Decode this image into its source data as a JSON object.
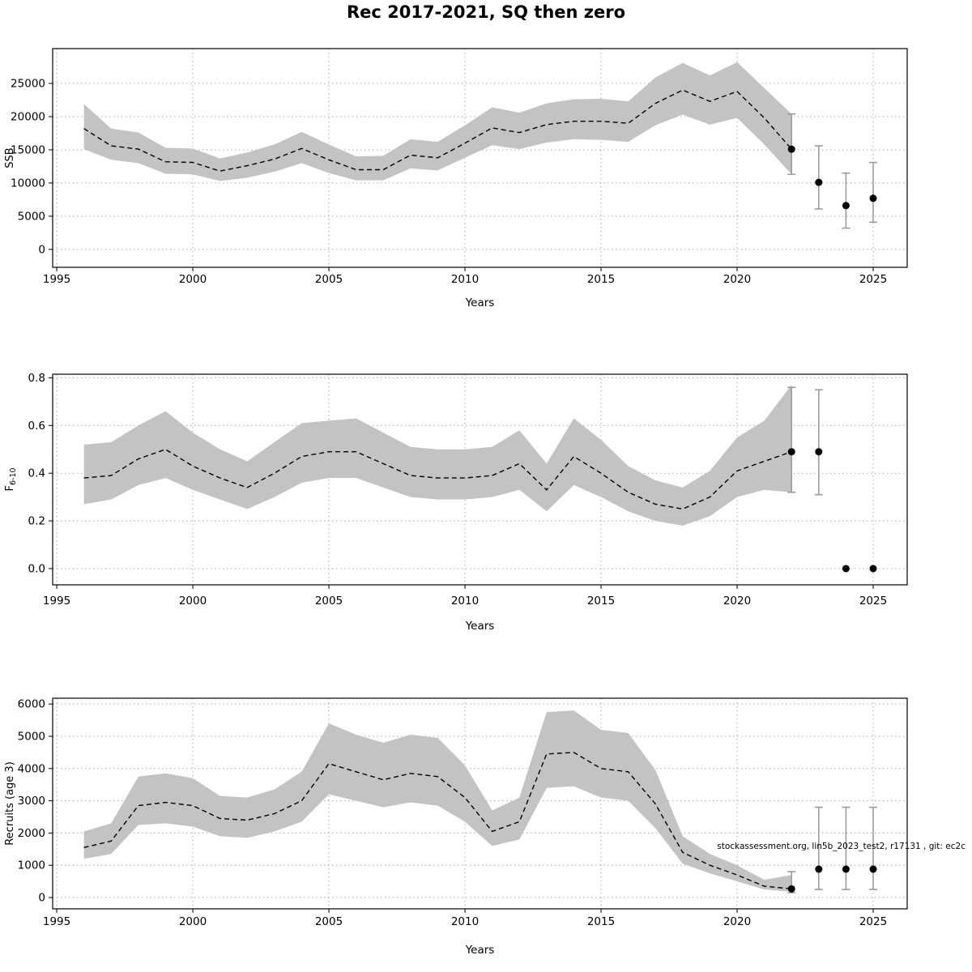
{
  "title": "Rec 2017-2021, SQ then zero",
  "colors": {
    "band": "#c3c3c3",
    "line": "#000000",
    "point": "#000000",
    "errorbar": "#9c9c9c",
    "grid": "#a9a9a9",
    "box": "#000000"
  },
  "chart_data": [
    {
      "type": "line",
      "title": "",
      "xlabel": "Years",
      "ylabel": "SSB",
      "ylabel_sub": "",
      "xlim": [
        1995,
        2026
      ],
      "ylim": [
        0,
        28500
      ],
      "grid": "dotted",
      "xticks": [
        1995,
        2000,
        2005,
        2010,
        2015,
        2020,
        2025
      ],
      "xtick_labels": [
        "1995",
        "2000",
        "2005",
        "2010",
        "2015",
        "2020",
        "2025"
      ],
      "yticks": [
        0,
        5000,
        10000,
        15000,
        20000,
        25000
      ],
      "ytick_labels": [
        "0",
        "5000",
        "10000",
        "15000",
        "20000",
        "25000"
      ],
      "x": [
        1996,
        1997,
        1998,
        1999,
        2000,
        2001,
        2002,
        2003,
        2004,
        2005,
        2006,
        2007,
        2008,
        2009,
        2010,
        2011,
        2012,
        2013,
        2014,
        2015,
        2016,
        2017,
        2018,
        2019,
        2020,
        2021,
        2022
      ],
      "estimate": [
        18200,
        15600,
        15100,
        13200,
        13100,
        11800,
        12600,
        13600,
        15200,
        13500,
        12000,
        12000,
        14200,
        13800,
        16000,
        18300,
        17600,
        18800,
        19300,
        19300,
        19000,
        22000,
        24000,
        22300,
        23800,
        19800,
        15100
      ],
      "lower": [
        15100,
        13500,
        13000,
        11400,
        11300,
        10300,
        10800,
        11700,
        13000,
        11500,
        10400,
        10400,
        12200,
        11900,
        13800,
        15700,
        15100,
        16100,
        16600,
        16500,
        16200,
        18700,
        20300,
        18800,
        19800,
        15800,
        11300
      ],
      "upper": [
        21900,
        18200,
        17600,
        15300,
        15200,
        13700,
        14600,
        15800,
        17700,
        15800,
        14000,
        14100,
        16600,
        16200,
        18700,
        21400,
        20600,
        22000,
        22600,
        22700,
        22300,
        25900,
        28100,
        26200,
        28200,
        24300,
        20400
      ],
      "forecast": {
        "x": [
          2022,
          2023,
          2024,
          2025
        ],
        "values": [
          15100,
          10100,
          6600,
          7700
        ],
        "lower": [
          11300,
          6100,
          3200,
          4100
        ],
        "upper": [
          20400,
          15600,
          11500,
          13100
        ]
      },
      "annotation": ""
    },
    {
      "type": "line",
      "title": "",
      "xlabel": "Years",
      "ylabel": "F",
      "ylabel_sub": "6-10",
      "xlim": [
        1995,
        2026
      ],
      "ylim": [
        0,
        0.8
      ],
      "grid": "dotted",
      "xticks": [
        1995,
        2000,
        2005,
        2010,
        2015,
        2020,
        2025
      ],
      "xtick_labels": [
        "1995",
        "2000",
        "2005",
        "2010",
        "2015",
        "2020",
        "2025"
      ],
      "yticks": [
        0,
        0.2,
        0.4,
        0.6,
        0.8
      ],
      "ytick_labels": [
        "0.0",
        "0.2",
        "0.4",
        "0.6",
        "0.8"
      ],
      "x": [
        1996,
        1997,
        1998,
        1999,
        2000,
        2001,
        2002,
        2003,
        2004,
        2005,
        2006,
        2007,
        2008,
        2009,
        2010,
        2011,
        2012,
        2013,
        2014,
        2015,
        2016,
        2017,
        2018,
        2019,
        2020,
        2021,
        2022
      ],
      "estimate": [
        0.38,
        0.39,
        0.46,
        0.5,
        0.43,
        0.38,
        0.34,
        0.4,
        0.47,
        0.49,
        0.49,
        0.44,
        0.39,
        0.38,
        0.38,
        0.39,
        0.44,
        0.33,
        0.47,
        0.4,
        0.32,
        0.27,
        0.25,
        0.3,
        0.41,
        0.45,
        0.49
      ],
      "lower": [
        0.27,
        0.29,
        0.35,
        0.38,
        0.33,
        0.29,
        0.25,
        0.3,
        0.36,
        0.38,
        0.38,
        0.34,
        0.3,
        0.29,
        0.29,
        0.3,
        0.33,
        0.24,
        0.35,
        0.3,
        0.24,
        0.2,
        0.18,
        0.22,
        0.3,
        0.33,
        0.32
      ],
      "upper": [
        0.52,
        0.53,
        0.6,
        0.66,
        0.57,
        0.5,
        0.45,
        0.53,
        0.61,
        0.62,
        0.63,
        0.57,
        0.51,
        0.5,
        0.5,
        0.51,
        0.58,
        0.44,
        0.63,
        0.54,
        0.43,
        0.37,
        0.34,
        0.41,
        0.55,
        0.62,
        0.77
      ],
      "forecast": {
        "x": [
          2022,
          2023,
          2024,
          2025
        ],
        "values": [
          0.49,
          0.49,
          0.0,
          0.0
        ],
        "lower": [
          0.32,
          0.31,
          null,
          null
        ],
        "upper": [
          0.76,
          0.75,
          null,
          null
        ]
      },
      "annotation": ""
    },
    {
      "type": "line",
      "title": "",
      "xlabel": "Years",
      "ylabel": "Recruits (age 3)",
      "ylabel_sub": "",
      "xlim": [
        1995,
        2026
      ],
      "ylim": [
        0,
        6000
      ],
      "grid": "dotted",
      "xticks": [
        1995,
        2000,
        2005,
        2010,
        2015,
        2020,
        2025
      ],
      "xtick_labels": [
        "1995",
        "2000",
        "2005",
        "2010",
        "2015",
        "2020",
        "2025"
      ],
      "yticks": [
        0,
        1000,
        2000,
        3000,
        4000,
        5000,
        6000
      ],
      "ytick_labels": [
        "0",
        "1000",
        "2000",
        "3000",
        "4000",
        "5000",
        "6000"
      ],
      "x": [
        1996,
        1997,
        1998,
        1999,
        2000,
        2001,
        2002,
        2003,
        2004,
        2005,
        2006,
        2007,
        2008,
        2009,
        2010,
        2011,
        2012,
        2013,
        2014,
        2015,
        2016,
        2017,
        2018,
        2019,
        2020,
        2021,
        2022
      ],
      "estimate": [
        1550,
        1750,
        2850,
        2950,
        2850,
        2450,
        2400,
        2600,
        3000,
        4150,
        3900,
        3650,
        3850,
        3750,
        3100,
        2050,
        2350,
        4450,
        4500,
        4000,
        3900,
        2900,
        1400,
        1000,
        700,
        350,
        270
      ],
      "lower": [
        1200,
        1350,
        2250,
        2300,
        2200,
        1900,
        1850,
        2050,
        2350,
        3200,
        3000,
        2800,
        2950,
        2850,
        2350,
        1600,
        1800,
        3400,
        3450,
        3100,
        3000,
        2150,
        1050,
        750,
        500,
        250,
        180
      ],
      "upper": [
        2050,
        2300,
        3750,
        3850,
        3700,
        3150,
        3100,
        3350,
        3900,
        5400,
        5050,
        4800,
        5050,
        4950,
        4100,
        2700,
        3100,
        5750,
        5800,
        5200,
        5100,
        3950,
        1900,
        1350,
        1000,
        550,
        700
      ],
      "forecast": {
        "x": [
          2022,
          2023,
          2024,
          2025
        ],
        "values": [
          270,
          880,
          880,
          880
        ],
        "lower": [
          150,
          250,
          250,
          250
        ],
        "upper": [
          800,
          2800,
          2800,
          2800
        ]
      },
      "annotation": "stockassessment.org, lin5b_2023_test2, r17131 , git: ec2c"
    }
  ]
}
